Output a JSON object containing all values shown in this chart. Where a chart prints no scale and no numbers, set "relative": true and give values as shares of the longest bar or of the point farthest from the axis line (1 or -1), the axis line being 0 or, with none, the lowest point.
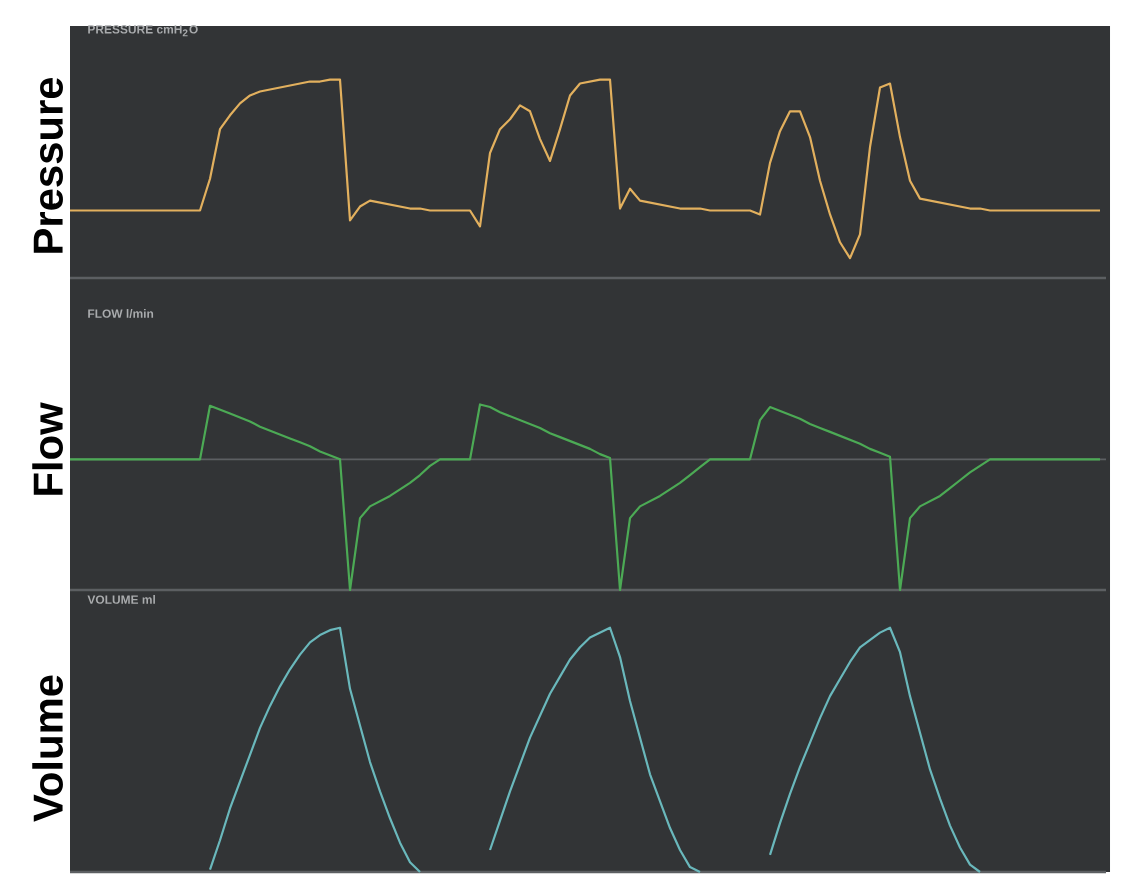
{
  "chart_data": [
    {
      "type": "line",
      "title": "PRESSURE cmH$_{2}$O",
      "ylabel": "Pressure",
      "relative": true,
      "categories": [
        null,
        null,
        null,
        null,
        null,
        null,
        null,
        null,
        null,
        null,
        null,
        null,
        null,
        null,
        null,
        null,
        null,
        null,
        null,
        null,
        null,
        null,
        null,
        null,
        null,
        null,
        null,
        null,
        null,
        null,
        null,
        null,
        null,
        null,
        null,
        null,
        null,
        null,
        null,
        null,
        null,
        null,
        null,
        null,
        null,
        null,
        null,
        null,
        null,
        null,
        null,
        null,
        null,
        null,
        null,
        null,
        null,
        null,
        null,
        null,
        null,
        null,
        null,
        null,
        null,
        null,
        null,
        null,
        null,
        null,
        null,
        null,
        null,
        null,
        null,
        null,
        null,
        null,
        null,
        null,
        null,
        null,
        null,
        null,
        null,
        null,
        null,
        null,
        null,
        null,
        null,
        null,
        null,
        null,
        null,
        null,
        null,
        null,
        null,
        null,
        null,
        null,
        null,
        null
      ],
      "series": [
        {
          "color": "#e2b05e",
          "values": [
            0.34,
            0.34,
            0.34,
            0.34,
            0.34,
            0.34,
            0.34,
            0.34,
            0.34,
            0.34,
            0.34,
            0.34,
            0.34,
            0.34,
            0.5,
            0.75,
            0.82,
            0.88,
            0.92,
            0.94,
            0.95,
            0.96,
            0.97,
            0.98,
            0.99,
            0.99,
            1,
            1,
            0.29,
            0.36,
            0.39,
            0.38,
            0.37,
            0.36,
            0.35,
            0.35,
            0.34,
            0.34,
            0.34,
            0.34,
            0.34,
            0.26,
            0.63,
            0.75,
            0.8,
            0.87,
            0.84,
            0.7,
            0.59,
            0.75,
            0.92,
            0.98,
            0.99,
            1,
            1,
            0.35,
            0.45,
            0.39,
            0.38,
            0.37,
            0.36,
            0.35,
            0.35,
            0.35,
            0.34,
            0.34,
            0.34,
            0.34,
            0.34,
            0.32,
            0.58,
            0.74,
            0.84,
            0.84,
            0.71,
            0.49,
            0.32,
            0.18,
            0.1,
            0.22,
            0.66,
            0.96,
            0.98,
            0.71,
            0.49,
            0.4,
            0.39,
            0.38,
            0.37,
            0.36,
            0.35,
            0.35,
            0.34,
            0.34,
            0.34,
            0.34,
            0.34,
            0.34,
            0.34,
            0.34,
            0.34,
            0.34,
            0.34,
            0.34
          ]
        }
      ]
    },
    {
      "type": "line",
      "title": "FLOW l/min",
      "ylabel": "Flow",
      "relative": true,
      "categories": [
        null,
        null,
        null,
        null,
        null,
        null,
        null,
        null,
        null,
        null,
        null,
        null,
        null,
        null,
        null,
        null,
        null,
        null,
        null,
        null,
        null,
        null,
        null,
        null,
        null,
        null,
        null,
        null,
        null,
        null,
        null,
        null,
        null,
        null,
        null,
        null,
        null,
        null,
        null,
        null,
        null,
        null,
        null,
        null,
        null,
        null,
        null,
        null,
        null,
        null,
        null,
        null,
        null,
        null,
        null,
        null,
        null,
        null,
        null,
        null,
        null,
        null,
        null,
        null,
        null,
        null,
        null,
        null,
        null,
        null,
        null,
        null,
        null,
        null,
        null,
        null,
        null,
        null,
        null,
        null,
        null,
        null,
        null,
        null,
        null,
        null,
        null,
        null,
        null,
        null,
        null,
        null,
        null,
        null,
        null,
        null,
        null,
        null,
        null,
        null,
        null,
        null,
        null,
        null
      ],
      "series": [
        {
          "color": "#4caa55",
          "values": [
            0,
            0,
            0,
            0,
            0,
            0,
            0,
            0,
            0,
            0,
            0,
            0,
            0,
            0,
            0.41,
            0.38,
            0.35,
            0.32,
            0.29,
            0.25,
            0.22,
            0.19,
            0.16,
            0.13,
            0.1,
            0.06,
            0.03,
            0,
            -1,
            -0.45,
            -0.36,
            -0.32,
            -0.28,
            -0.23,
            -0.18,
            -0.12,
            -0.05,
            0,
            0,
            0,
            0,
            0.42,
            0.4,
            0.36,
            0.33,
            0.3,
            0.27,
            0.24,
            0.2,
            0.17,
            0.14,
            0.11,
            0.08,
            0.04,
            0.01,
            -1,
            -0.45,
            -0.36,
            -0.32,
            -0.28,
            -0.23,
            -0.18,
            -0.12,
            -0.06,
            0,
            0,
            0,
            0,
            0,
            0.3,
            0.4,
            0.37,
            0.34,
            0.31,
            0.27,
            0.24,
            0.21,
            0.18,
            0.15,
            0.12,
            0.08,
            0.05,
            0.02,
            -1,
            -0.45,
            -0.36,
            -0.32,
            -0.28,
            -0.22,
            -0.16,
            -0.1,
            -0.05,
            0,
            0,
            0,
            0,
            0,
            0,
            0,
            0,
            0,
            0,
            0,
            0
          ]
        }
      ]
    },
    {
      "type": "line",
      "title": "VOLUME ml",
      "ylabel": "Volume",
      "relative": true,
      "categories": [
        null,
        null,
        null,
        null,
        null,
        null,
        null,
        null,
        null,
        null,
        null,
        null,
        null,
        null,
        null,
        null,
        null,
        null,
        null,
        null,
        null,
        null,
        null,
        null,
        null,
        null,
        null,
        null,
        null,
        null,
        null,
        null,
        null,
        null,
        null,
        null,
        null,
        null,
        null,
        null,
        null,
        null,
        null,
        null,
        null,
        null,
        null,
        null,
        null,
        null,
        null,
        null,
        null,
        null,
        null,
        null,
        null,
        null,
        null,
        null,
        null,
        null,
        null,
        null,
        null,
        null,
        null,
        null,
        null,
        null,
        null,
        null,
        null,
        null,
        null,
        null,
        null,
        null,
        null,
        null,
        null,
        null,
        null,
        null,
        null,
        null,
        null,
        null,
        null,
        null,
        null,
        null,
        null,
        null,
        null,
        null,
        null,
        null,
        null,
        null,
        null,
        null,
        null,
        null
      ],
      "series": [
        {
          "color": "#6ab8bc",
          "values": [
            null,
            null,
            null,
            null,
            null,
            null,
            null,
            null,
            null,
            null,
            null,
            null,
            null,
            null,
            0.01,
            0.13,
            0.26,
            0.37,
            0.48,
            0.59,
            0.68,
            0.76,
            0.83,
            0.89,
            0.94,
            0.97,
            0.99,
            1,
            0.75,
            0.6,
            0.45,
            0.33,
            0.22,
            0.12,
            0.04,
            0,
            null,
            null,
            null,
            null,
            null,
            null,
            0.09,
            0.21,
            0.33,
            0.44,
            0.55,
            0.64,
            0.73,
            0.8,
            0.87,
            0.92,
            0.96,
            0.98,
            1,
            0.88,
            0.7,
            0.55,
            0.4,
            0.29,
            0.18,
            0.09,
            0.02,
            0,
            null,
            null,
            null,
            null,
            null,
            null,
            0.07,
            0.2,
            0.32,
            0.43,
            0.53,
            0.63,
            0.72,
            0.79,
            0.86,
            0.92,
            0.95,
            0.98,
            1,
            0.9,
            0.72,
            0.57,
            0.42,
            0.3,
            0.19,
            0.1,
            0.03,
            0,
            null,
            null,
            null,
            null,
            null,
            null,
            null,
            null,
            null,
            null,
            null,
            null
          ]
        }
      ]
    }
  ]
}
